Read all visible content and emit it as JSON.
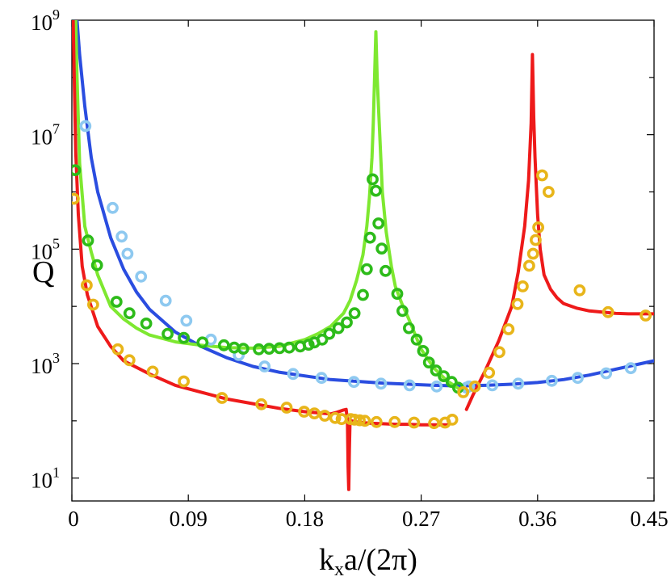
{
  "chart_data": {
    "type": "line",
    "title": "",
    "xlabel": {
      "main": "k",
      "sub": "x",
      "rest": "a/(2π)"
    },
    "ylabel": "Q",
    "xlim": [
      0,
      0.45
    ],
    "ylim_log10": [
      0.6,
      9
    ],
    "yscale": "log",
    "x_ticks": [
      {
        "value": 0,
        "label": "0"
      },
      {
        "value": 0.09,
        "label": "0.09"
      },
      {
        "value": 0.18,
        "label": "0.18"
      },
      {
        "value": 0.27,
        "label": "0.27"
      },
      {
        "value": 0.36,
        "label": "0.36"
      },
      {
        "value": 0.45,
        "label": "0.45"
      }
    ],
    "y_ticks": [
      {
        "exp": 1,
        "base": "10",
        "sup": "1"
      },
      {
        "exp": 3,
        "base": "10",
        "sup": "3"
      },
      {
        "exp": 5,
        "base": "10",
        "sup": "5"
      },
      {
        "exp": 7,
        "base": "10",
        "sup": "7"
      },
      {
        "exp": 9,
        "base": "10",
        "sup": "9"
      }
    ],
    "grid": false,
    "series": [
      {
        "name": "blue-line",
        "kind": "line",
        "color": "#2a4de0",
        "x": [
          0.004,
          0.006,
          0.01,
          0.015,
          0.02,
          0.03,
          0.04,
          0.05,
          0.06,
          0.08,
          0.1,
          0.12,
          0.14,
          0.16,
          0.2,
          0.24,
          0.28,
          0.3,
          0.32,
          0.34,
          0.36,
          0.38,
          0.4,
          0.42,
          0.44,
          0.45
        ],
        "log10y": [
          9.0,
          8.4,
          7.5,
          6.6,
          6.0,
          5.2,
          4.65,
          4.25,
          3.95,
          3.55,
          3.3,
          3.1,
          2.95,
          2.85,
          2.72,
          2.66,
          2.62,
          2.61,
          2.62,
          2.64,
          2.67,
          2.72,
          2.8,
          2.9,
          3.0,
          3.05
        ]
      },
      {
        "name": "green-line",
        "kind": "line",
        "color": "#7ee830",
        "x": [
          0.003,
          0.004,
          0.006,
          0.01,
          0.015,
          0.02,
          0.03,
          0.04,
          0.05,
          0.06,
          0.08,
          0.1,
          0.12,
          0.14,
          0.16,
          0.18,
          0.19,
          0.2,
          0.21,
          0.215,
          0.22,
          0.225,
          0.228,
          0.23,
          0.232,
          0.233,
          0.234,
          0.235,
          0.236,
          0.238,
          0.24,
          0.243,
          0.247,
          0.25,
          0.255,
          0.26,
          0.27,
          0.28,
          0.29,
          0.3
        ],
        "log10y": [
          9.0,
          8.0,
          6.5,
          5.4,
          4.95,
          4.55,
          4.0,
          3.78,
          3.62,
          3.5,
          3.38,
          3.32,
          3.28,
          3.27,
          3.3,
          3.42,
          3.52,
          3.65,
          3.88,
          4.1,
          4.45,
          4.9,
          5.4,
          5.9,
          6.6,
          7.2,
          8.0,
          8.8,
          8.0,
          7.0,
          6.0,
          5.3,
          4.7,
          4.35,
          4.05,
          3.8,
          3.25,
          2.92,
          2.7,
          2.55
        ]
      },
      {
        "name": "red-line",
        "kind": "line",
        "color": "#ee1a1a",
        "x": [
          0.001,
          0.002,
          0.003,
          0.005,
          0.008,
          0.012,
          0.02,
          0.03,
          0.04,
          0.06,
          0.08,
          0.1,
          0.12,
          0.14,
          0.16,
          0.18,
          0.19,
          0.2,
          0.205,
          0.21,
          0.212,
          0.213,
          0.2135,
          0.214,
          0.2145,
          0.215,
          0.216,
          0.218,
          0.22,
          0.23,
          0.24,
          0.25,
          0.26,
          0.27,
          0.28,
          0.29
        ],
        "log10y": [
          9.0,
          7.8,
          6.7,
          5.6,
          4.7,
          4.2,
          3.65,
          3.3,
          3.05,
          2.82,
          2.62,
          2.5,
          2.38,
          2.3,
          2.22,
          2.16,
          2.14,
          2.12,
          2.15,
          2.19,
          2.2,
          2.0,
          1.2,
          0.8,
          1.5,
          2.0,
          2.0,
          1.99,
          1.98,
          1.96,
          1.95,
          1.94,
          1.94,
          1.93,
          1.93,
          1.93
        ]
      },
      {
        "name": "red-line-right",
        "kind": "line",
        "color": "#ee1a1a",
        "x": [
          0.305,
          0.31,
          0.32,
          0.33,
          0.34,
          0.345,
          0.35,
          0.353,
          0.355,
          0.356,
          0.357,
          0.358,
          0.36,
          0.362,
          0.365,
          0.37,
          0.375,
          0.38,
          0.39,
          0.4,
          0.41,
          0.42,
          0.43,
          0.44,
          0.45
        ],
        "log10y": [
          2.2,
          2.45,
          2.9,
          3.4,
          4.0,
          4.6,
          5.4,
          6.2,
          7.2,
          8.4,
          7.3,
          6.6,
          5.6,
          5.0,
          4.55,
          4.3,
          4.15,
          4.05,
          3.97,
          3.92,
          3.9,
          3.88,
          3.87,
          3.87,
          3.87
        ]
      },
      {
        "name": "light-blue-circles",
        "kind": "scatter",
        "color": "#8ec9f0",
        "x": [
          0.0105,
          0.0315,
          0.0385,
          0.043,
          0.0535,
          0.0725,
          0.0885,
          0.1075,
          0.129,
          0.149,
          0.171,
          0.193,
          0.218,
          0.239,
          0.261,
          0.282,
          0.305,
          0.307,
          0.325,
          0.345,
          0.371,
          0.391,
          0.413,
          0.432
        ],
        "log10y": [
          7.15,
          5.72,
          5.22,
          4.92,
          4.52,
          4.1,
          3.75,
          3.42,
          3.15,
          2.95,
          2.82,
          2.75,
          2.68,
          2.65,
          2.62,
          2.6,
          2.58,
          2.6,
          2.62,
          2.65,
          2.7,
          2.75,
          2.83,
          2.92
        ]
      },
      {
        "name": "green-circles",
        "kind": "scatter",
        "color": "#2dbb1a",
        "x": [
          0.0025,
          0.0125,
          0.0195,
          0.0345,
          0.0445,
          0.0575,
          0.074,
          0.0865,
          0.101,
          0.1175,
          0.1255,
          0.1325,
          0.1445,
          0.1525,
          0.1605,
          0.168,
          0.1765,
          0.183,
          0.1875,
          0.1935,
          0.199,
          0.206,
          0.2125,
          0.2185,
          0.225,
          0.228,
          0.2305,
          0.2325,
          0.235,
          0.237,
          0.2395,
          0.2425,
          0.2515,
          0.2555,
          0.2605,
          0.2665,
          0.2715,
          0.276,
          0.2815,
          0.2875,
          0.2935,
          0.2985
        ],
        "log10y": [
          6.38,
          5.15,
          4.72,
          4.08,
          3.88,
          3.7,
          3.52,
          3.45,
          3.37,
          3.32,
          3.28,
          3.26,
          3.25,
          3.26,
          3.27,
          3.28,
          3.3,
          3.33,
          3.37,
          3.42,
          3.52,
          3.62,
          3.72,
          3.88,
          4.2,
          4.65,
          5.2,
          6.22,
          6.02,
          5.45,
          5.01,
          4.62,
          4.22,
          3.92,
          3.62,
          3.42,
          3.22,
          3.02,
          2.88,
          2.78,
          2.68,
          2.58
        ]
      },
      {
        "name": "orange-circles",
        "kind": "scatter",
        "color": "#e8b51a",
        "x": [
          0.0015,
          0.0115,
          0.0165,
          0.0355,
          0.0445,
          0.0625,
          0.0865,
          0.116,
          0.1465,
          0.166,
          0.1795,
          0.1875,
          0.1955,
          0.2035,
          0.2085,
          0.2155,
          0.2185,
          0.2225,
          0.2265,
          0.2355,
          0.2495,
          0.2645,
          0.28,
          0.2885,
          0.294,
          0.3025,
          0.3115,
          0.3225,
          0.3305,
          0.3375,
          0.3445,
          0.3485,
          0.3535,
          0.3565,
          0.3585,
          0.3605,
          0.3635,
          0.3685,
          0.3925,
          0.4145,
          0.4435
        ],
        "log10y": [
          5.88,
          4.37,
          4.03,
          3.25,
          3.06,
          2.86,
          2.69,
          2.4,
          2.29,
          2.23,
          2.16,
          2.13,
          2.09,
          2.05,
          2.03,
          2.03,
          2.02,
          2.01,
          2.0,
          1.98,
          1.98,
          1.97,
          1.96,
          1.97,
          2.02,
          2.5,
          2.6,
          2.84,
          3.2,
          3.6,
          4.04,
          4.35,
          4.71,
          4.92,
          5.16,
          5.38,
          6.29,
          6.0,
          4.28,
          3.9,
          3.84
        ]
      }
    ]
  }
}
